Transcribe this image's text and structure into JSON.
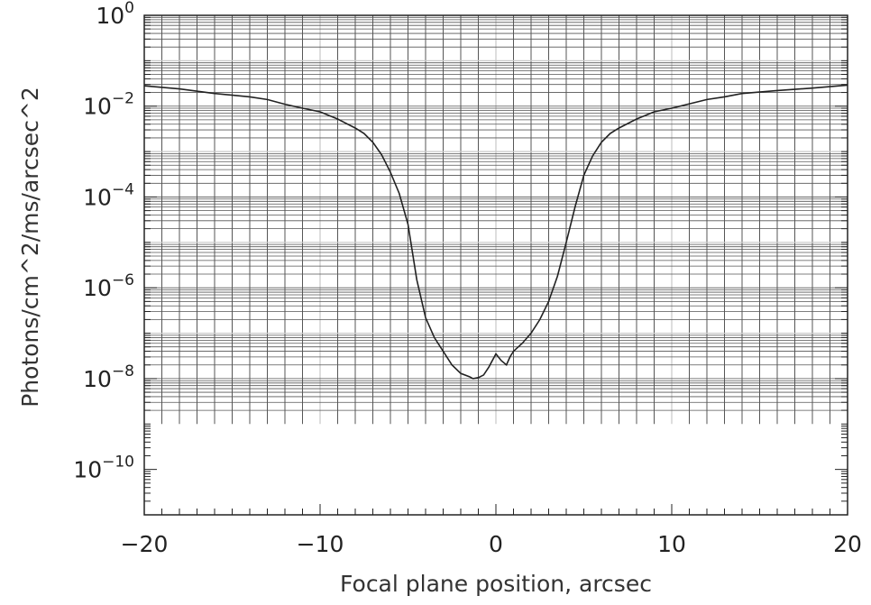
{
  "chart_data": {
    "type": "line",
    "title": "",
    "xlabel": "Focal plane position, arcsec",
    "ylabel": "Photons/cm^2/ms/arcsec^2",
    "xlim": [
      -20,
      20
    ],
    "ylim": [
      1e-11,
      1
    ],
    "yscale": "log",
    "grid": true,
    "xticks": [
      {
        "value": -20,
        "label": "−20"
      },
      {
        "value": -10,
        "label": "−10"
      },
      {
        "value": 0,
        "label": "0"
      },
      {
        "value": 10,
        "label": "10"
      },
      {
        "value": 20,
        "label": "20"
      }
    ],
    "yticks": [
      {
        "value": 1e-10,
        "base": "10",
        "exp": "−10"
      },
      {
        "value": 1e-08,
        "base": "10",
        "exp": "−8"
      },
      {
        "value": 1e-06,
        "base": "10",
        "exp": "−6"
      },
      {
        "value": 0.0001,
        "base": "10",
        "exp": "−4"
      },
      {
        "value": 0.01,
        "base": "10",
        "exp": "−2"
      },
      {
        "value": 1,
        "base": "10",
        "exp": "0"
      }
    ],
    "series": [
      {
        "x": [
          -20,
          -18,
          -16,
          -14,
          -13,
          -12,
          -11,
          -10,
          -9,
          -8,
          -7.5,
          -7,
          -6.5,
          -6,
          -5.5,
          -5,
          -4.5,
          -4,
          -3.5,
          -3,
          -2.5,
          -2,
          -1.5,
          -1.3,
          -1,
          -0.7,
          -0.4,
          0,
          0.3,
          0.6,
          0.8,
          1,
          1.5,
          2,
          2.5,
          3,
          3.5,
          4,
          4.5,
          5,
          5.5,
          6,
          6.5,
          7,
          8,
          9,
          10,
          12,
          13,
          14,
          16,
          18,
          20
        ],
        "y": [
          0.028,
          0.024,
          0.019,
          0.016,
          0.014,
          0.011,
          0.009,
          0.0075,
          0.0052,
          0.0033,
          0.0025,
          0.0016,
          0.00085,
          0.00035,
          0.00012,
          2.5e-05,
          1.5e-06,
          2.2e-07,
          8e-08,
          4e-08,
          2e-08,
          1.3e-08,
          1.1e-08,
          1e-08,
          1.05e-08,
          1.2e-08,
          1.8e-08,
          3.5e-08,
          2.5e-08,
          2e-08,
          3e-08,
          4e-08,
          6e-08,
          1e-07,
          2e-07,
          5e-07,
          1.8e-06,
          1e-05,
          6e-05,
          0.0003,
          0.0008,
          0.0016,
          0.0025,
          0.0033,
          0.0052,
          0.0075,
          0.009,
          0.014,
          0.016,
          0.019,
          0.022,
          0.025,
          0.029
        ]
      }
    ]
  }
}
